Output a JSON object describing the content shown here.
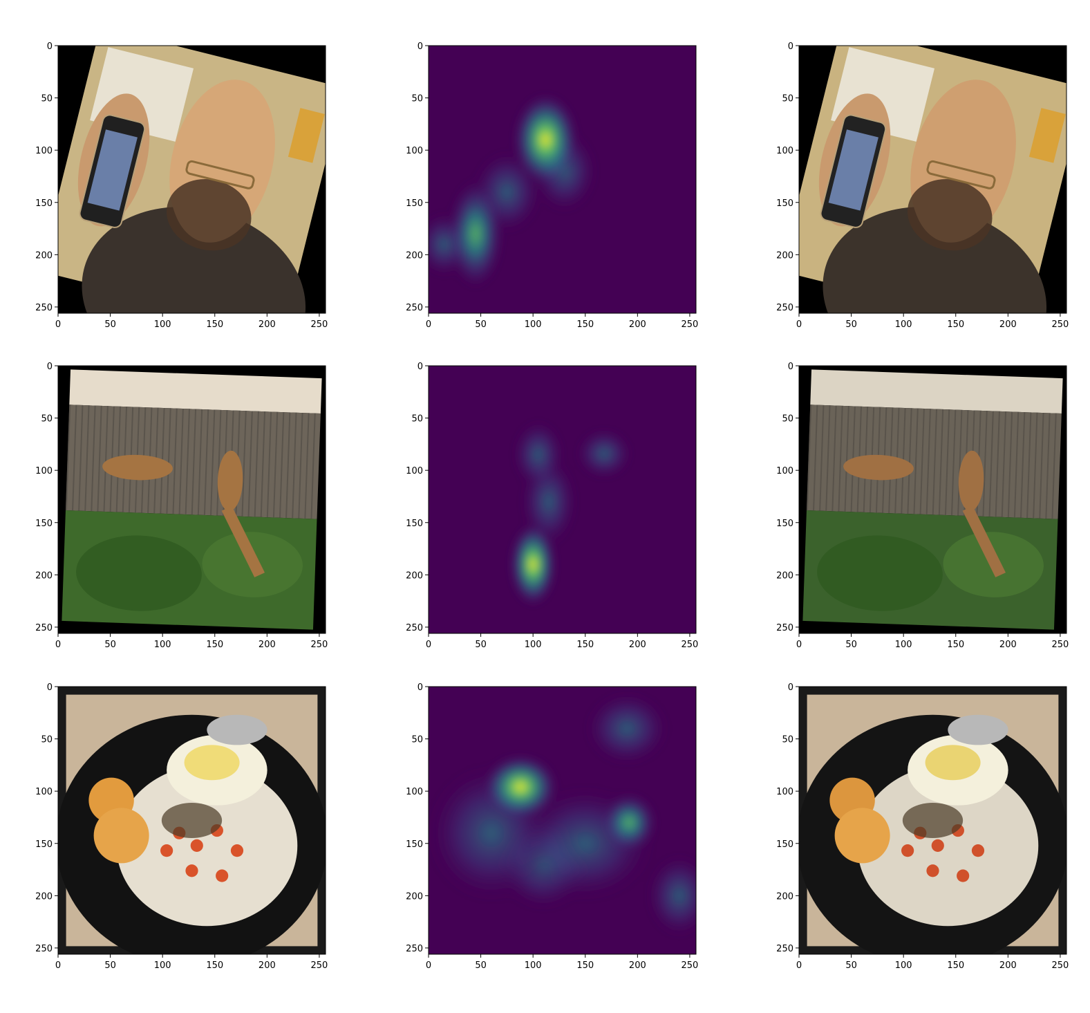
{
  "figure": {
    "rows": 3,
    "cols": 3,
    "columns": [
      "augmented-image",
      "saliency-heatmap",
      "reconstructed-image"
    ],
    "axes": {
      "xlim": [
        0,
        256
      ],
      "ylim_inverted": [
        256,
        0
      ],
      "xticks": [
        0,
        50,
        100,
        150,
        200,
        250
      ],
      "yticks": [
        0,
        50,
        100,
        150,
        200,
        250
      ]
    },
    "colormap": {
      "name": "viridis",
      "background": "#440154",
      "low": "#3b528b",
      "mid": "#21918c",
      "high": "#5ec962",
      "peak": "#fde725"
    },
    "panels": [
      {
        "row": 0,
        "col": 0,
        "kind": "photo",
        "subject": "man holding phone",
        "rotation_deg": 14,
        "background": "#000000",
        "palette": {
          "wall": "#c9b585",
          "skin": "#d6a777",
          "hoodie": "#3a322c",
          "phone": "#202020"
        }
      },
      {
        "row": 0,
        "col": 1,
        "kind": "heatmap",
        "blobs": [
          {
            "x": 112,
            "y": 90,
            "sx": 14,
            "sy": 20,
            "level": 1.0
          },
          {
            "x": 45,
            "y": 180,
            "sx": 12,
            "sy": 24,
            "level": 0.65
          },
          {
            "x": 75,
            "y": 140,
            "sx": 15,
            "sy": 18,
            "level": 0.3
          },
          {
            "x": 15,
            "y": 190,
            "sx": 12,
            "sy": 14,
            "level": 0.25
          },
          {
            "x": 130,
            "y": 120,
            "sx": 14,
            "sy": 18,
            "level": 0.35
          }
        ]
      },
      {
        "row": 0,
        "col": 2,
        "kind": "photo",
        "subject": "man holding phone",
        "rotation_deg": 14,
        "background": "#000000",
        "palette": {
          "wall": "#c9b380",
          "skin": "#cf9f70",
          "hoodie": "#3c332b",
          "phone": "#222222"
        }
      },
      {
        "row": 1,
        "col": 0,
        "kind": "photo",
        "subject": "upside-down giraffes by fence",
        "rotation_deg": 2,
        "background": "#000000",
        "palette": {
          "sky": "#e6dccb",
          "fence": "#6d655a",
          "foliage": "#3e6a2b",
          "giraffe": "#a57442"
        }
      },
      {
        "row": 1,
        "col": 1,
        "kind": "heatmap",
        "blobs": [
          {
            "x": 100,
            "y": 190,
            "sx": 10,
            "sy": 18,
            "level": 1.0
          },
          {
            "x": 105,
            "y": 85,
            "sx": 11,
            "sy": 15,
            "level": 0.45
          },
          {
            "x": 168,
            "y": 84,
            "sx": 12,
            "sy": 11,
            "level": 0.45
          },
          {
            "x": 115,
            "y": 130,
            "sx": 12,
            "sy": 20,
            "level": 0.3
          }
        ]
      },
      {
        "row": 1,
        "col": 2,
        "kind": "photo",
        "subject": "upside-down giraffes by fence",
        "rotation_deg": 2,
        "background": "#000000",
        "palette": {
          "sky": "#dcd4c4",
          "fence": "#6a6358",
          "foliage": "#3b622c",
          "giraffe": "#a07043"
        }
      },
      {
        "row": 2,
        "col": 0,
        "kind": "photo",
        "subject": "rice bowl with fried egg",
        "rotation_deg": 0,
        "background": "#1a1a1a",
        "palette": {
          "bowl": "#121212",
          "rice": "#e6dfd0",
          "egg": "#f0dc78",
          "croquette": "#e29b3e",
          "carrot": "#d9532a"
        }
      },
      {
        "row": 2,
        "col": 1,
        "kind": "heatmap",
        "blobs": [
          {
            "x": 88,
            "y": 96,
            "sx": 16,
            "sy": 14,
            "level": 1.0
          },
          {
            "x": 192,
            "y": 130,
            "sx": 12,
            "sy": 13,
            "level": 0.8
          },
          {
            "x": 60,
            "y": 140,
            "sx": 28,
            "sy": 30,
            "level": 0.4
          },
          {
            "x": 150,
            "y": 150,
            "sx": 30,
            "sy": 25,
            "level": 0.45
          },
          {
            "x": 190,
            "y": 40,
            "sx": 18,
            "sy": 16,
            "level": 0.3
          },
          {
            "x": 240,
            "y": 200,
            "sx": 14,
            "sy": 18,
            "level": 0.4
          },
          {
            "x": 110,
            "y": 170,
            "sx": 20,
            "sy": 20,
            "level": 0.3
          }
        ]
      },
      {
        "row": 2,
        "col": 2,
        "kind": "photo",
        "subject": "rice bowl with fried egg",
        "rotation_deg": 0,
        "background": "#1a1a1a",
        "palette": {
          "bowl": "#141414",
          "rice": "#ddd6c6",
          "egg": "#ead472",
          "croquette": "#dc963e",
          "carrot": "#d0512b"
        }
      }
    ]
  }
}
